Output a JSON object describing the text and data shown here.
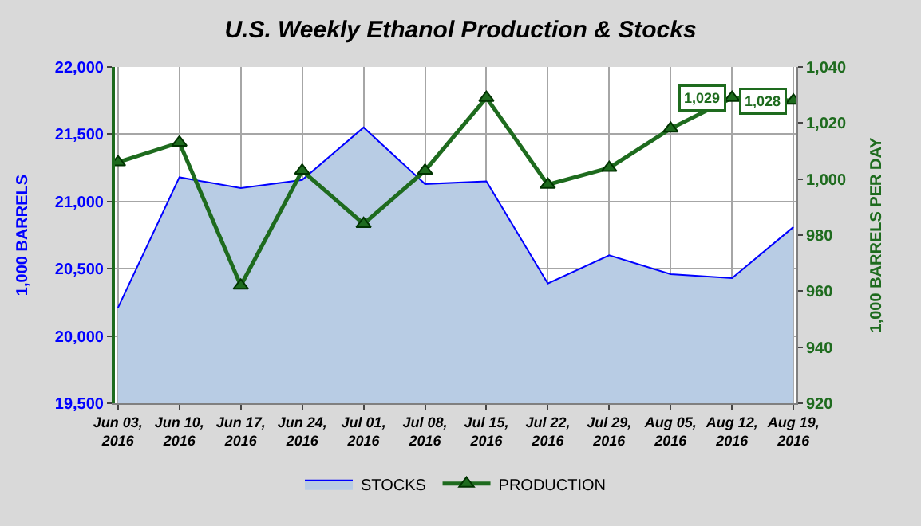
{
  "chart_data": {
    "type": "area",
    "title": "U.S. Weekly Ethanol Production & Stocks",
    "categories": [
      "Jun 03,\n2016",
      "Jun 10,\n2016",
      "Jun 17,\n2016",
      "Jun 24,\n2016",
      "Jul 01,\n2016",
      "Jul 08,\n2016",
      "Jul 15,\n2016",
      "Jul 22,\n2016",
      "Jul 29,\n2016",
      "Aug 05,\n2016",
      "Aug 12,\n2016",
      "Aug 19,\n2016"
    ],
    "series": [
      {
        "name": "STOCKS",
        "color": "#b8cce4",
        "values": [
          20210,
          21180,
          21100,
          21160,
          21550,
          21130,
          21150,
          20390,
          20600,
          20460,
          20430,
          20810
        ]
      },
      {
        "name": "PRODUCTION",
        "type": "line",
        "axis": "y2",
        "color": "#1e6b1e",
        "marker": "triangle",
        "values": [
          1006,
          1013,
          962,
          1003,
          984,
          1003,
          1029,
          998,
          1004,
          1018,
          1029,
          1028
        ],
        "value_labels": [
          null,
          null,
          null,
          null,
          null,
          null,
          null,
          null,
          null,
          null,
          "1,029",
          "1,028"
        ]
      }
    ],
    "ylabel": "1,000 BARRELS",
    "y2label": "1,000 BARRELS PER DAY",
    "ylim": [
      19500,
      22000
    ],
    "yticks": [
      {
        "value": 19500,
        "label": "19,500"
      },
      {
        "value": 20000,
        "label": "20,000"
      },
      {
        "value": 20500,
        "label": "20,500"
      },
      {
        "value": 21000,
        "label": "21,000"
      },
      {
        "value": 21500,
        "label": "21,500"
      },
      {
        "value": 22000,
        "label": "22,000"
      }
    ],
    "y2lim": [
      920,
      1040
    ],
    "y2ticks": [
      920,
      940,
      960,
      980,
      {
        "value": 1000,
        "label": "1,000"
      },
      {
        "value": 1020,
        "label": "1,020"
      },
      {
        "value": 1040,
        "label": "1,040"
      }
    ],
    "grid": true,
    "legend": "bottom"
  }
}
